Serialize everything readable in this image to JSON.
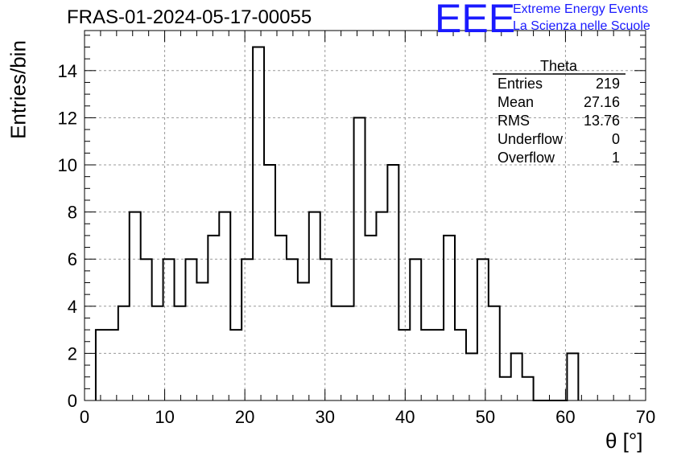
{
  "page": {
    "title": "FRAS-01-2024-05-17-00055",
    "logo_mark": "EEE",
    "logo_line1": "Extreme Energy Events",
    "logo_line2": "La Scienza nelle Scuole",
    "logo_color": "#1a1aff"
  },
  "chart_data": {
    "type": "histogram",
    "xlabel": "θ [°]",
    "ylabel": "Entries/bin",
    "xlim": [
      0,
      70
    ],
    "ylim": [
      0,
      15.7
    ],
    "bin_width": 1.4,
    "bin_start": 1.4,
    "x_ticks": [
      0,
      10,
      20,
      30,
      40,
      50,
      60,
      70
    ],
    "y_ticks": [
      0,
      2,
      4,
      6,
      8,
      10,
      12,
      14
    ],
    "grid": true,
    "values": [
      3,
      3,
      4,
      8,
      6,
      4,
      6,
      4,
      6,
      5,
      7,
      8,
      3,
      6,
      15,
      10,
      7,
      6,
      5,
      8,
      6,
      4,
      4,
      12,
      7,
      8,
      10,
      3,
      6,
      3,
      3,
      7,
      3,
      2,
      6,
      4,
      1,
      2,
      1,
      0,
      0,
      0,
      2
    ],
    "stats_box": {
      "name": "Theta",
      "rows": [
        {
          "label": "Entries",
          "value": "219"
        },
        {
          "label": "Mean",
          "value": "27.16"
        },
        {
          "label": "RMS",
          "value": "13.76"
        },
        {
          "label": "Underflow",
          "value": "0"
        },
        {
          "label": "Overflow",
          "value": "1"
        }
      ]
    }
  }
}
